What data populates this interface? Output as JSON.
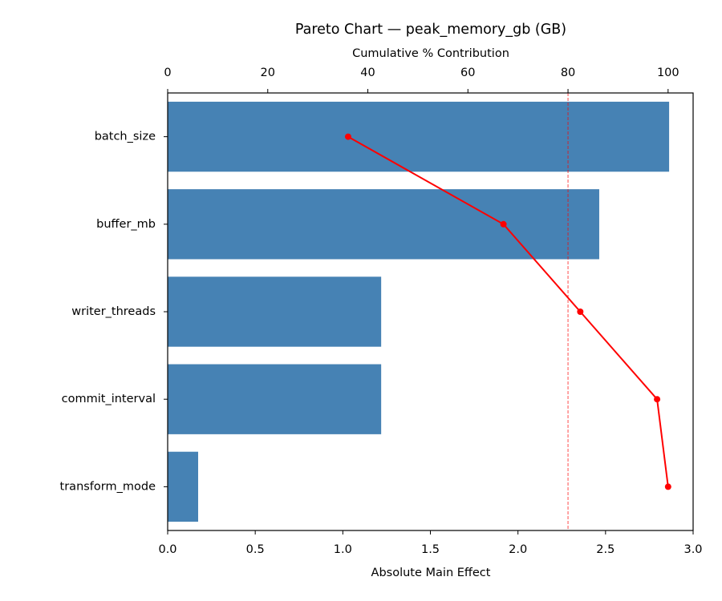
{
  "chart_data": {
    "type": "pareto",
    "title": "Pareto Chart — peak_memory_gb (GB)",
    "xlabel": "Absolute Main Effect",
    "x2label": "Cumulative % Contribution",
    "categories": [
      "batch_size",
      "buffer_mb",
      "writer_threads",
      "commit_interval",
      "transform_mode"
    ],
    "values": [
      2.863,
      2.464,
      1.219,
      1.219,
      0.174
    ],
    "color": "#4682b4",
    "cumulative": {
      "values": [
        36.06,
        67.1,
        82.45,
        97.8,
        100
      ],
      "color": "#ff0000"
    },
    "threshold": 80,
    "threshold_color": "#ff0000",
    "xlim": [
      0,
      3.0
    ],
    "xticks": [
      {
        "value": 0,
        "label": "0.0"
      },
      0.5,
      {
        "value": 1,
        "label": "1.0"
      },
      1.5,
      {
        "value": 2,
        "label": "2.0"
      },
      2.5,
      {
        "value": 3,
        "label": "3.0"
      }
    ],
    "x2lim": [
      0,
      105
    ],
    "x2ticks": [
      0,
      20,
      40,
      60,
      80,
      100
    ]
  }
}
